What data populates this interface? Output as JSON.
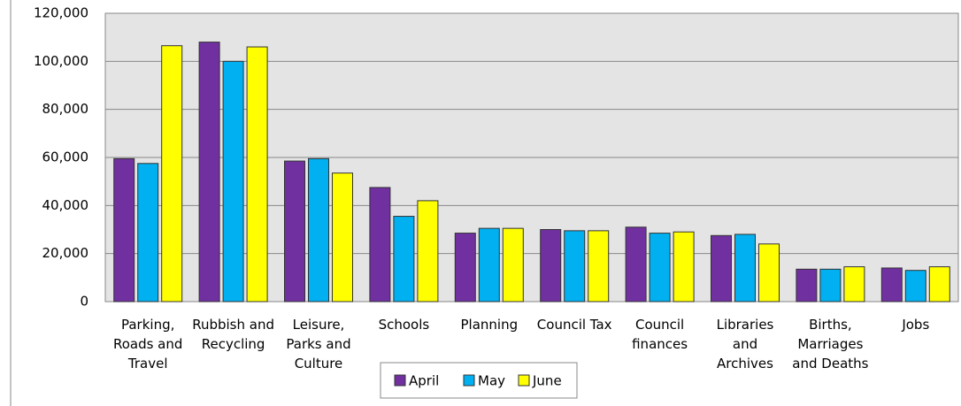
{
  "chart_data": {
    "type": "bar",
    "categories": [
      "Parking, Roads and Travel",
      "Rubbish and Recycling",
      "Leisure, Parks and Culture",
      "Schools",
      "Planning",
      "Council Tax",
      "Council finances",
      "Libraries and Archives",
      "Births, Marriages and Deaths",
      "Jobs"
    ],
    "series": [
      {
        "name": "April",
        "color": "#7030a0",
        "values": [
          59500,
          108000,
          58500,
          47500,
          28500,
          30000,
          31000,
          27500,
          13500,
          14000
        ]
      },
      {
        "name": "May",
        "color": "#00b0f0",
        "values": [
          57500,
          100000,
          59500,
          35500,
          30500,
          29500,
          28500,
          28000,
          13500,
          13000
        ]
      },
      {
        "name": "June",
        "color": "#ffff00",
        "values": [
          106500,
          106000,
          53500,
          42000,
          30500,
          29500,
          29000,
          24000,
          14500,
          14500
        ]
      }
    ],
    "ylim": [
      0,
      120000
    ],
    "yticks": [
      0,
      {
        "value": 20000,
        "label": "20,000"
      },
      {
        "value": 40000,
        "label": "40,000"
      },
      {
        "value": 60000,
        "label": "60,000"
      },
      {
        "value": 80000,
        "label": "80,000"
      },
      {
        "value": 100000,
        "label": "100,000"
      },
      {
        "value": 120000,
        "label": "120,000"
      }
    ],
    "grid": true,
    "legend": "bottom"
  }
}
